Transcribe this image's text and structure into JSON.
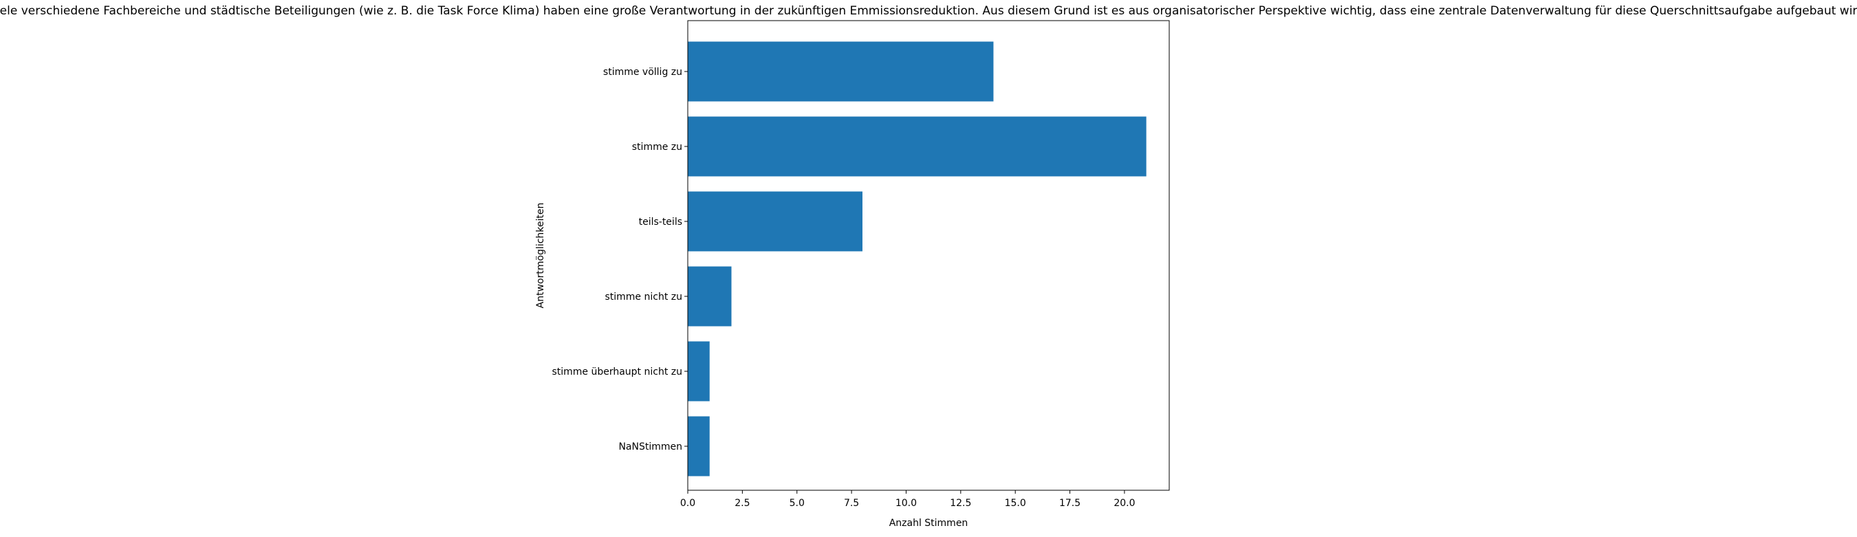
{
  "chart_data": {
    "type": "bar",
    "orientation": "horizontal",
    "title": "Viele verschiedene Fachbereiche und städtische Beteiligungen (wie z. B. die Task Force Klima) haben eine große Verantwortung in der zukünftigen Emmissionsreduktion. Aus diesem Grund ist es aus organisatorischer Perspektive wichtig, dass eine zentrale Datenverwaltung für diese Querschnittsaufgabe aufgebaut wird.",
    "xlabel": "Anzahl Stimmen",
    "ylabel": "Antwortmöglichkeiten",
    "categories": [
      "stimme völlig zu",
      "stimme zu",
      "teils-teils",
      "stimme nicht zu",
      "stimme überhaupt nicht zu",
      "NaNStimmen"
    ],
    "values": [
      14,
      21,
      8,
      2,
      1,
      1
    ],
    "xlim": [
      0,
      22.05
    ],
    "xticks": [
      0,
      2.5,
      5,
      7.5,
      10,
      12.5,
      15,
      17.5,
      20
    ],
    "xtick_labels": [
      "0.0",
      "2.5",
      "5.0",
      "7.5",
      "10.0",
      "12.5",
      "15.0",
      "17.5",
      "20.0"
    ],
    "grid": false,
    "bar_color": "#1f77b4"
  }
}
